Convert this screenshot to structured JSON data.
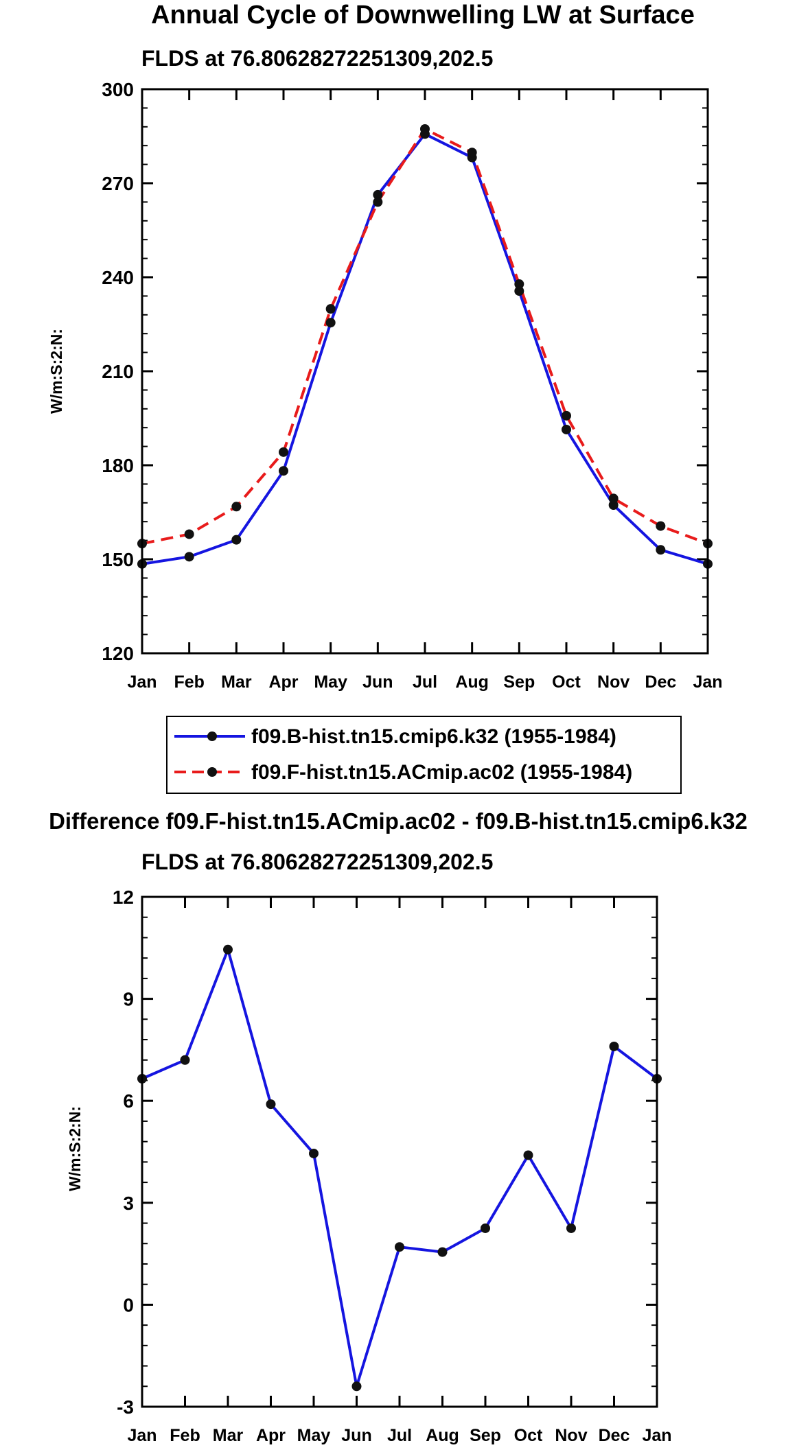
{
  "chart_data": [
    {
      "type": "line",
      "title": "Annual Cycle of Downwelling LW at Surface",
      "subtitle": "FLDS at 76.80628272251309,202.5",
      "ylabel": "W/m:S:2:N:",
      "xlabel": "",
      "categories": [
        "Jan",
        "Feb",
        "Mar",
        "Apr",
        "May",
        "Jun",
        "Jul",
        "Aug",
        "Sep",
        "Oct",
        "Nov",
        "Dec",
        "Jan"
      ],
      "ylim": [
        120,
        300
      ],
      "yticks": [
        120,
        150,
        180,
        210,
        240,
        270,
        300
      ],
      "grid": false,
      "series": [
        {
          "name": "f09.B-hist.tn15.cmip6.k32 (1955-1984)",
          "color": "#1515e0",
          "style": "solid",
          "values": [
            148.5,
            150.8,
            156.2,
            178.2,
            225.5,
            266.3,
            285.7,
            278.2,
            235.6,
            191.4,
            167.3,
            153.0,
            148.5
          ]
        },
        {
          "name": "f09.F-hist.tn15.ACmip.ac02 (1955-1984)",
          "color": "#e81b1b",
          "style": "dashed",
          "values": [
            155.0,
            158.0,
            166.8,
            184.2,
            229.9,
            264.0,
            287.3,
            279.8,
            237.8,
            195.8,
            169.4,
            160.6,
            155.0
          ]
        }
      ]
    },
    {
      "type": "line",
      "title": "Difference f09.F-hist.tn15.ACmip.ac02 - f09.B-hist.tn15.cmip6.k32",
      "subtitle": "FLDS at 76.80628272251309,202.5",
      "ylabel": "W/m:S:2:N:",
      "xlabel": "",
      "categories": [
        "Jan",
        "Feb",
        "Mar",
        "Apr",
        "May",
        "Jun",
        "Jul",
        "Aug",
        "Sep",
        "Oct",
        "Nov",
        "Dec",
        "Jan"
      ],
      "ylim": [
        -3,
        12
      ],
      "yticks": [
        -3,
        0,
        3,
        6,
        9,
        12
      ],
      "grid": false,
      "series": [
        {
          "name": "difference",
          "color": "#1515e0",
          "style": "solid",
          "values": [
            6.65,
            7.2,
            10.45,
            5.9,
            4.45,
            -2.4,
            1.7,
            1.55,
            2.25,
            4.4,
            2.25,
            7.6,
            6.65
          ]
        }
      ]
    }
  ]
}
